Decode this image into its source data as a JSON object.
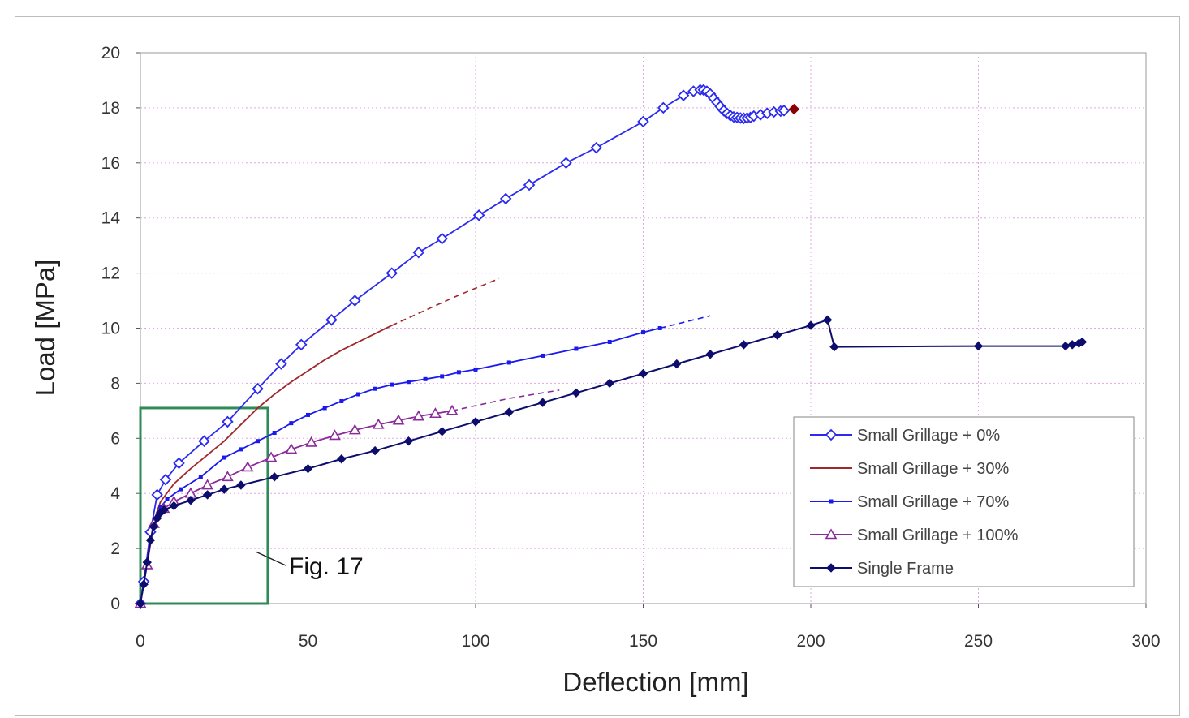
{
  "chart_data": {
    "type": "line",
    "xlabel": "Deflection [mm]",
    "ylabel": "Load [MPa]",
    "xlim": [
      0,
      300
    ],
    "ylim": [
      0,
      20
    ],
    "x_ticks": [
      0,
      50,
      100,
      150,
      200,
      250,
      300
    ],
    "y_ticks": [
      0,
      2,
      4,
      6,
      8,
      10,
      12,
      14,
      16,
      18,
      20
    ],
    "grid": true,
    "legend_position": "bottom-right",
    "annotation": {
      "text": "Fig. 17",
      "box_x": [
        0,
        38
      ],
      "box_y": [
        0,
        7.1
      ],
      "box_color": "#2e8b57"
    },
    "series": [
      {
        "name": "Small Grillage  + 0%",
        "color": "#2b2bef",
        "marker": "diamond-open",
        "x": [
          0,
          1,
          3,
          5,
          7.5,
          11.5,
          19,
          26,
          35,
          42,
          48,
          57,
          64,
          75,
          83,
          90,
          101,
          109,
          116,
          127,
          136,
          150,
          156,
          162,
          165,
          167,
          168,
          169,
          170,
          171,
          172,
          173,
          174,
          175,
          176,
          177,
          178,
          179,
          180,
          181,
          182,
          183,
          185,
          187,
          189,
          191,
          192
        ],
        "y": [
          0,
          0.8,
          2.6,
          3.95,
          4.5,
          5.1,
          5.9,
          6.6,
          7.8,
          8.7,
          9.4,
          10.3,
          11.0,
          12.0,
          12.75,
          13.25,
          14.1,
          14.7,
          15.2,
          16.0,
          16.55,
          17.5,
          18.0,
          18.45,
          18.6,
          18.65,
          18.65,
          18.6,
          18.5,
          18.35,
          18.2,
          18.05,
          17.9,
          17.8,
          17.72,
          17.67,
          17.65,
          17.63,
          17.62,
          17.63,
          17.65,
          17.7,
          17.75,
          17.8,
          17.85,
          17.88,
          17.9
        ],
        "final_point": {
          "x": 195,
          "y": 17.95,
          "color": "#8b0000"
        }
      },
      {
        "name": "Small Grillage  + 30%",
        "color": "#a0282a",
        "marker": "none",
        "x": [
          0,
          2,
          4,
          6,
          10,
          15,
          20,
          25,
          30,
          35,
          40,
          45,
          50,
          55,
          60,
          65,
          70,
          75
        ],
        "y": [
          0,
          1.5,
          3.0,
          3.7,
          4.35,
          4.9,
          5.4,
          5.9,
          6.5,
          7.1,
          7.6,
          8.05,
          8.45,
          8.85,
          9.2,
          9.5,
          9.8,
          10.1
        ],
        "extrapolation": {
          "x": [
            75,
            85,
            95,
            107
          ],
          "y": [
            10.1,
            10.65,
            11.2,
            11.8
          ]
        }
      },
      {
        "name": "Small Grillage  + 70%",
        "color": "#1a1aee",
        "marker": "square-small",
        "x": [
          0,
          2,
          4,
          6,
          8,
          12,
          18,
          25,
          30,
          35,
          40,
          45,
          50,
          55,
          60,
          65,
          70,
          75,
          80,
          85,
          90,
          95,
          100,
          110,
          120,
          130,
          140,
          150,
          155
        ],
        "y": [
          0,
          1.5,
          2.9,
          3.5,
          3.8,
          4.15,
          4.6,
          5.3,
          5.6,
          5.9,
          6.2,
          6.55,
          6.85,
          7.1,
          7.35,
          7.6,
          7.8,
          7.95,
          8.05,
          8.15,
          8.25,
          8.4,
          8.5,
          8.75,
          9.0,
          9.25,
          9.5,
          9.85,
          10.0
        ],
        "extrapolation": {
          "x": [
            155,
            170
          ],
          "y": [
            10.0,
            10.45
          ]
        }
      },
      {
        "name": "Small Grillage  + 100%",
        "color": "#8b2a9a",
        "marker": "triangle-open",
        "x": [
          0,
          2,
          4,
          7,
          10,
          15,
          20,
          26,
          32,
          39,
          45,
          51,
          58,
          64,
          71,
          77,
          83,
          88,
          93
        ],
        "y": [
          0,
          1.4,
          2.9,
          3.45,
          3.7,
          4.0,
          4.3,
          4.6,
          4.95,
          5.3,
          5.6,
          5.85,
          6.1,
          6.3,
          6.5,
          6.65,
          6.8,
          6.9,
          7.0
        ],
        "extrapolation": {
          "x": [
            93,
            110,
            125
          ],
          "y": [
            7.0,
            7.45,
            7.75
          ]
        }
      },
      {
        "name": "Single Frame",
        "color": "#0d0d6e",
        "marker": "diamond-filled",
        "x": [
          0,
          1,
          2,
          3,
          4,
          5,
          6,
          7,
          10,
          15,
          20,
          25,
          30,
          40,
          50,
          60,
          70,
          80,
          90,
          100,
          110,
          120,
          130,
          140,
          150,
          160,
          170,
          180,
          190,
          200,
          205,
          207,
          250,
          276,
          278,
          280,
          281
        ],
        "y": [
          0,
          0.7,
          1.5,
          2.3,
          2.8,
          3.1,
          3.3,
          3.4,
          3.55,
          3.75,
          3.95,
          4.15,
          4.3,
          4.6,
          4.9,
          5.25,
          5.55,
          5.9,
          6.25,
          6.6,
          6.95,
          7.3,
          7.65,
          8.0,
          8.35,
          8.7,
          9.05,
          9.4,
          9.75,
          10.1,
          10.3,
          9.32,
          9.35,
          9.35,
          9.4,
          9.45,
          9.5
        ]
      }
    ]
  }
}
